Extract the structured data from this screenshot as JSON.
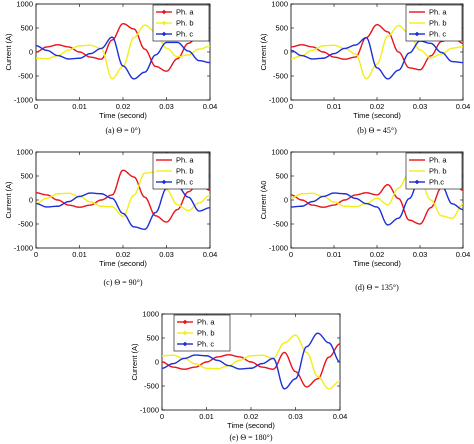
{
  "series_colors": {
    "Ph. a": "#e8141b",
    "Ph. b": "#f2ee1a",
    "Ph. c": "#1d2fd6",
    "Ph.c": "#1d2fd6"
  },
  "chart_data": [
    {
      "type": "line",
      "caption": "(a) Θ = 0°)",
      "xlabel": "Time (second)",
      "ylabel": "Current (A)",
      "xlim": [
        0,
        0.04
      ],
      "ylim": [
        -1000,
        1000
      ],
      "xticks": [
        "0",
        "0.01",
        "0.02",
        "0.03",
        "0.04"
      ],
      "yticks": [
        "-1000",
        "-500",
        "0",
        "500",
        "1000"
      ],
      "legend_position": "top-right",
      "grid": false,
      "fault_time": 0.015,
      "series": [
        {
          "name": "Ph. a",
          "x": [
            0,
            0.0025,
            0.005,
            0.0075,
            0.01,
            0.0125,
            0.015,
            0.0175,
            0.02,
            0.0225,
            0.025,
            0.0275,
            0.03,
            0.0325,
            0.035,
            0.0375,
            0.04
          ],
          "values": [
            0,
            106,
            150,
            106,
            0,
            -106,
            -150,
            250,
            590,
            480,
            60,
            -300,
            -400,
            -140,
            180,
            350,
            230
          ]
        },
        {
          "name": "Ph. b",
          "x": [
            0,
            0.0025,
            0.005,
            0.0075,
            0.01,
            0.0125,
            0.015,
            0.0175,
            0.02,
            0.0225,
            0.025,
            0.0275,
            0.03,
            0.0325,
            0.035,
            0.0375,
            0.04
          ],
          "values": [
            -130,
            -140,
            -75,
            39,
            130,
            140,
            75,
            -560,
            -300,
            300,
            560,
            420,
            80,
            -100,
            -60,
            60,
            120
          ]
        },
        {
          "name": "Ph. c",
          "x": [
            0,
            0.0025,
            0.005,
            0.0075,
            0.01,
            0.0125,
            0.015,
            0.0175,
            0.02,
            0.0225,
            0.025,
            0.0275,
            0.03,
            0.0325,
            0.035,
            0.0375,
            0.04
          ],
          "values": [
            130,
            34,
            -75,
            -145,
            -130,
            -34,
            75,
            310,
            -290,
            -560,
            -420,
            -60,
            200,
            200,
            20,
            -180,
            -220
          ]
        }
      ]
    },
    {
      "type": "line",
      "caption": "(b) Θ = 45°)",
      "xlabel": "Time (second)",
      "ylabel": "Current (A)",
      "xlim": [
        0,
        0.04
      ],
      "ylim": [
        -1000,
        1000
      ],
      "xticks": [
        "0",
        "0.01",
        "0.02",
        "0.03",
        "0.04"
      ],
      "yticks": [
        "-1000",
        "-500",
        "0",
        "500",
        "1000"
      ],
      "legend_position": "top-right",
      "grid": false,
      "fault_time": 0.0175,
      "series": [
        {
          "name": "Ph. a",
          "x": [
            0,
            0.0025,
            0.005,
            0.0075,
            0.01,
            0.0125,
            0.015,
            0.0175,
            0.02,
            0.0225,
            0.025,
            0.0275,
            0.03,
            0.0325,
            0.035,
            0.0375,
            0.04
          ],
          "values": [
            106,
            150,
            106,
            0,
            -106,
            -150,
            -106,
            300,
            570,
            420,
            0,
            -330,
            -370,
            -80,
            220,
            330,
            180
          ]
        },
        {
          "name": "Ph. b",
          "x": [
            0,
            0.0025,
            0.005,
            0.0075,
            0.01,
            0.0125,
            0.015,
            0.0175,
            0.02,
            0.0225,
            0.025,
            0.0275,
            0.03,
            0.0325,
            0.035,
            0.0375,
            0.04
          ],
          "values": [
            -140,
            -75,
            39,
            130,
            140,
            75,
            -39,
            -560,
            -250,
            330,
            550,
            380,
            40,
            -120,
            -40,
            80,
            110
          ]
        },
        {
          "name": "Ph. c",
          "x": [
            0,
            0.0025,
            0.005,
            0.0075,
            0.01,
            0.0125,
            0.015,
            0.0175,
            0.02,
            0.0225,
            0.025,
            0.0275,
            0.03,
            0.0325,
            0.035,
            0.0375,
            0.04
          ],
          "values": [
            34,
            -75,
            -145,
            -130,
            -34,
            75,
            145,
            300,
            -330,
            -560,
            -380,
            -20,
            230,
            180,
            -10,
            -200,
            -220
          ]
        }
      ]
    },
    {
      "type": "line",
      "caption": "(c) Θ = 90°)",
      "xlabel": "Time (second)",
      "ylabel": "Current (A)",
      "xlim": [
        0,
        0.04
      ],
      "ylim": [
        -1000,
        1000
      ],
      "xticks": [
        "0",
        "0.01",
        "0.02",
        "0.03",
        "0.04"
      ],
      "yticks": [
        "-1000",
        "-500",
        "0",
        "500",
        "1000"
      ],
      "legend_position": "top-right",
      "grid": false,
      "fault_time": 0.02,
      "series": [
        {
          "name": "Ph. a",
          "x": [
            0,
            0.0025,
            0.005,
            0.0075,
            0.01,
            0.0125,
            0.015,
            0.0175,
            0.02,
            0.0225,
            0.025,
            0.0275,
            0.03,
            0.0325,
            0.035,
            0.0375,
            0.04
          ],
          "values": [
            150,
            106,
            0,
            -106,
            -150,
            -106,
            0,
            106,
            620,
            480,
            60,
            -330,
            -460,
            -200,
            170,
            360,
            200
          ]
        },
        {
          "name": "Ph. b",
          "x": [
            0,
            0.0025,
            0.005,
            0.0075,
            0.01,
            0.0125,
            0.015,
            0.0175,
            0.02,
            0.0225,
            0.025,
            0.0275,
            0.03,
            0.0325,
            0.035,
            0.0375,
            0.04
          ],
          "values": [
            -75,
            39,
            130,
            140,
            75,
            -39,
            -130,
            -140,
            -340,
            100,
            560,
            580,
            220,
            -100,
            -220,
            -60,
            100
          ]
        },
        {
          "name": "Ph. c",
          "x": [
            0,
            0.0025,
            0.005,
            0.0075,
            0.01,
            0.0125,
            0.015,
            0.0175,
            0.02,
            0.0225,
            0.025,
            0.0275,
            0.03,
            0.0325,
            0.035,
            0.0375,
            0.04
          ],
          "values": [
            -75,
            -145,
            -130,
            -34,
            75,
            145,
            130,
            34,
            -280,
            -560,
            -610,
            -260,
            240,
            290,
            60,
            -230,
            -160
          ]
        }
      ]
    },
    {
      "type": "line",
      "caption": "(d) Θ = 135°)",
      "xlabel": "Time (second)",
      "ylabel": "Current (A0",
      "xlim": [
        0,
        0.04
      ],
      "ylim": [
        -1000,
        1000
      ],
      "xticks": [
        "0",
        "0.01",
        "0.02",
        "0.03",
        "0.04"
      ],
      "yticks": [
        "-1000",
        "-500",
        "0",
        "500",
        "1000"
      ],
      "legend_position": "top-right",
      "grid": false,
      "fault_time": 0.0225,
      "series": [
        {
          "name": "Ph. a",
          "x": [
            0,
            0.0025,
            0.005,
            0.0075,
            0.01,
            0.0125,
            0.015,
            0.0175,
            0.02,
            0.0225,
            0.025,
            0.0275,
            0.03,
            0.0325,
            0.035,
            0.0375,
            0.04
          ],
          "values": [
            106,
            0,
            -106,
            -150,
            -106,
            0,
            106,
            150,
            106,
            320,
            30,
            -420,
            -500,
            -160,
            260,
            420,
            200
          ]
        },
        {
          "name": "Ph. b",
          "x": [
            0,
            0.0025,
            0.005,
            0.0075,
            0.01,
            0.0125,
            0.015,
            0.0175,
            0.02,
            0.0225,
            0.025,
            0.0275,
            0.03,
            0.0325,
            0.035,
            0.0375,
            0.04
          ],
          "values": [
            39,
            130,
            140,
            75,
            -39,
            -130,
            -140,
            -75,
            39,
            -100,
            250,
            560,
            420,
            0,
            -330,
            -380,
            -80
          ]
        },
        {
          "name": "Ph.c",
          "x": [
            0,
            0.0025,
            0.005,
            0.0075,
            0.01,
            0.0125,
            0.015,
            0.0175,
            0.02,
            0.0225,
            0.025,
            0.0275,
            0.03,
            0.0325,
            0.035,
            0.0375,
            0.04
          ],
          "values": [
            -145,
            -130,
            -34,
            75,
            145,
            130,
            34,
            -75,
            -145,
            -520,
            -380,
            30,
            480,
            600,
            300,
            -80,
            -200
          ]
        }
      ]
    },
    {
      "type": "line",
      "caption": "(e) Θ = 180°)",
      "xlabel": "Time (second)",
      "ylabel": "Current (A)",
      "xlim": [
        0,
        0.04
      ],
      "ylim": [
        -1000,
        1000
      ],
      "xticks": [
        "0",
        "0.01",
        "0.02",
        "0.03",
        "0.04"
      ],
      "yticks": [
        "-1000",
        "-500",
        "0",
        "500",
        "1000"
      ],
      "legend_position": "top-left",
      "grid": false,
      "fault_time": 0.025,
      "series": [
        {
          "name": "Ph. a",
          "x": [
            0,
            0.0025,
            0.005,
            0.0075,
            0.01,
            0.0125,
            0.015,
            0.0175,
            0.02,
            0.0225,
            0.025,
            0.0275,
            0.03,
            0.0325,
            0.035,
            0.0375,
            0.04
          ],
          "values": [
            0,
            -106,
            -150,
            -106,
            0,
            106,
            150,
            106,
            0,
            -106,
            -150,
            200,
            -200,
            -520,
            -350,
            100,
            380
          ]
        },
        {
          "name": "Ph. b",
          "x": [
            0,
            0.0025,
            0.005,
            0.0075,
            0.01,
            0.0125,
            0.015,
            0.0175,
            0.02,
            0.0225,
            0.025,
            0.0275,
            0.03,
            0.0325,
            0.035,
            0.0375,
            0.04
          ],
          "values": [
            130,
            140,
            75,
            -39,
            -130,
            -140,
            -75,
            39,
            130,
            140,
            75,
            400,
            560,
            200,
            -300,
            -560,
            -400
          ]
        },
        {
          "name": "Ph. c",
          "x": [
            0,
            0.0025,
            0.005,
            0.0075,
            0.01,
            0.0125,
            0.015,
            0.0175,
            0.02,
            0.0225,
            0.025,
            0.0275,
            0.03,
            0.0325,
            0.035,
            0.0375,
            0.04
          ],
          "values": [
            -130,
            -34,
            75,
            145,
            130,
            34,
            -75,
            -145,
            -130,
            -34,
            75,
            -560,
            -350,
            320,
            600,
            400,
            0
          ]
        }
      ]
    }
  ]
}
